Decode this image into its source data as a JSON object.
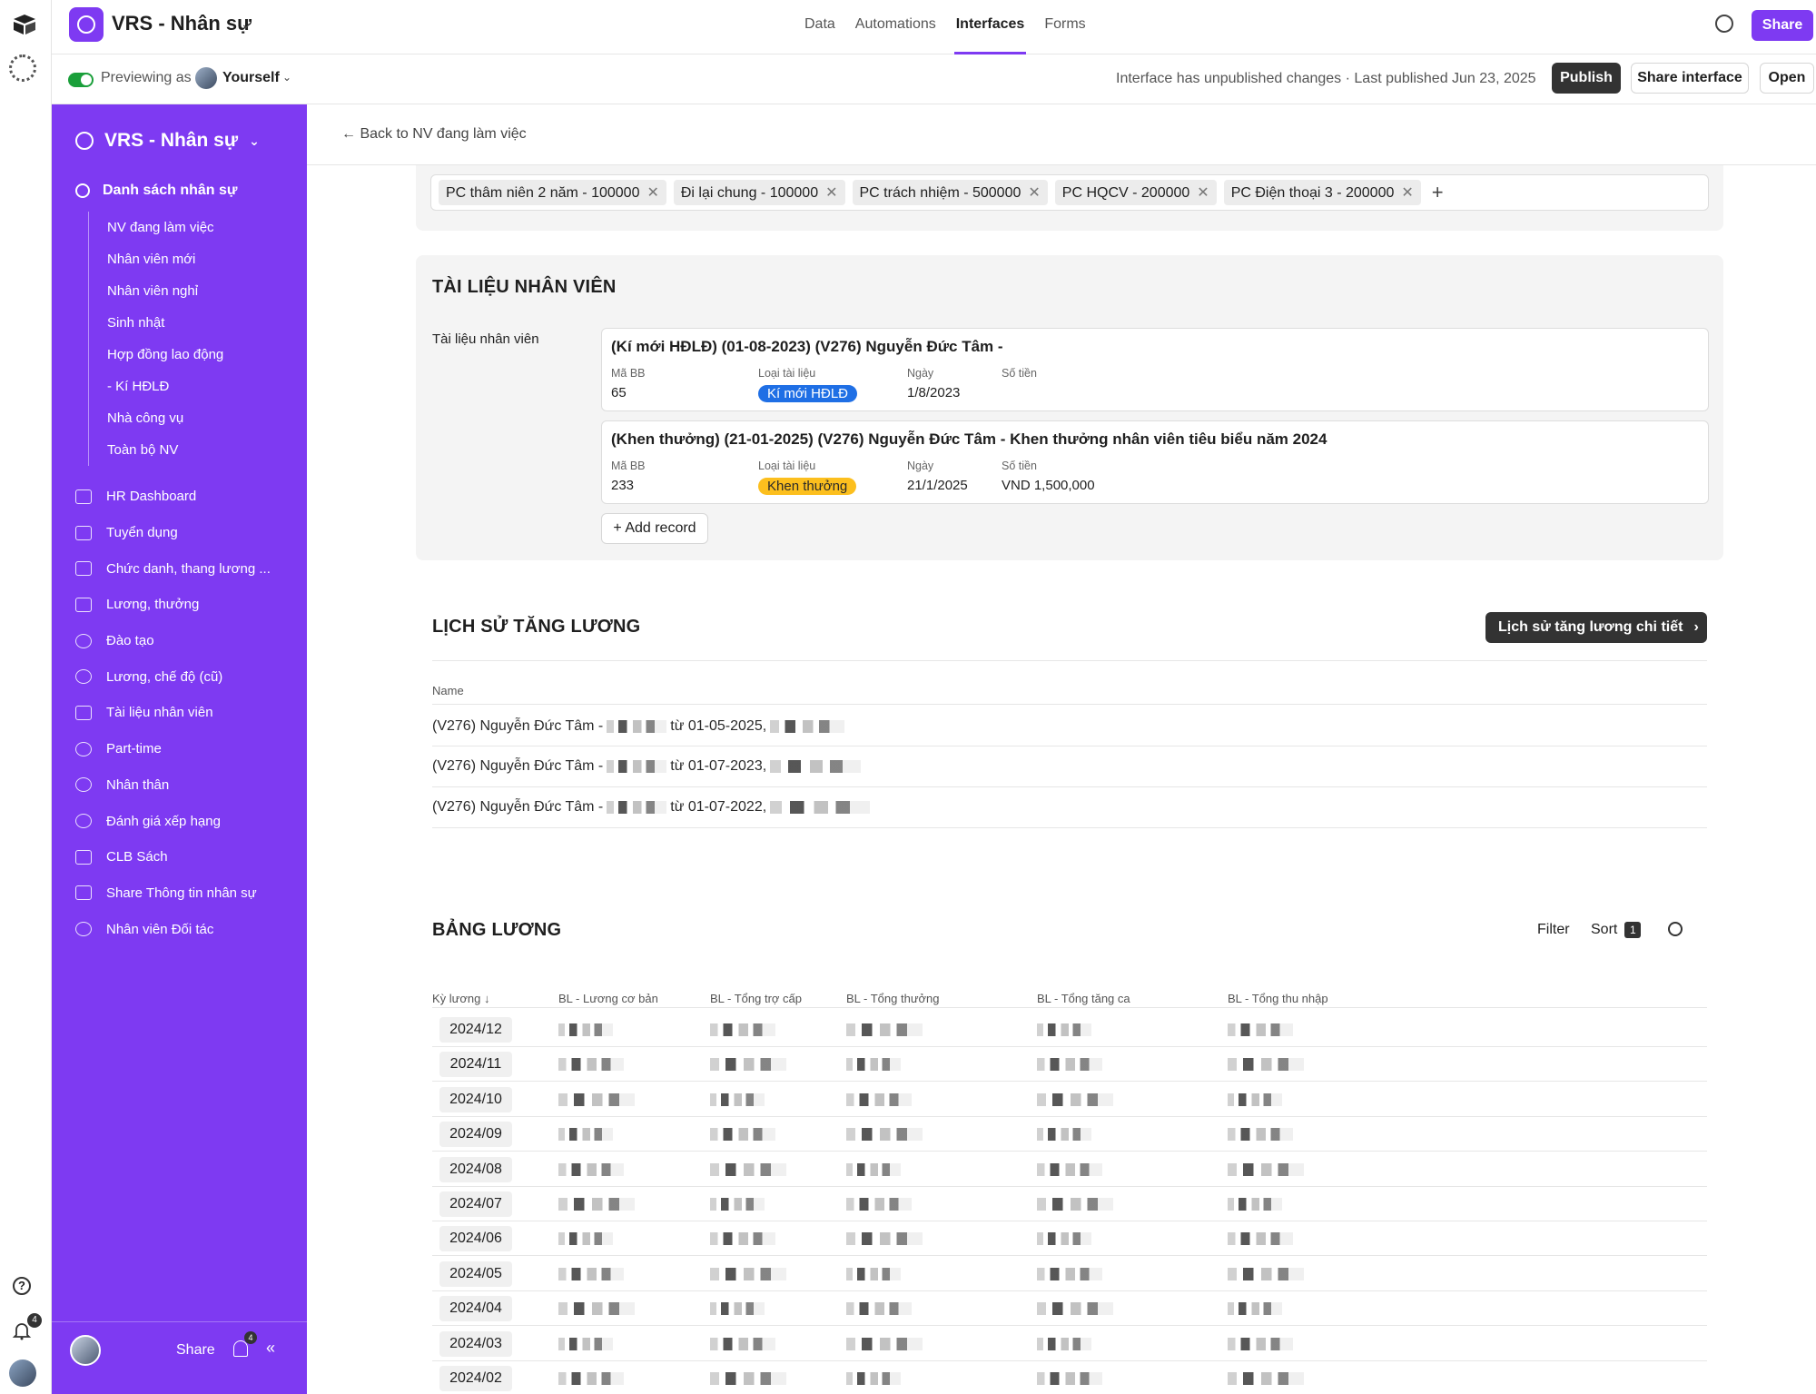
{
  "app": {
    "title": "VRS - Nhân sự"
  },
  "top_tabs": [
    "Data",
    "Automations",
    "Interfaces",
    "Forms"
  ],
  "active_tab": "Interfaces",
  "share_top": "Share",
  "preview": {
    "label": "Previewing as",
    "user": "Yourself"
  },
  "publish_info": "Interface has unpublished changes · Last published Jun 23, 2025",
  "buttons": {
    "publish": "Publish",
    "share_interface": "Share interface",
    "open": "Open"
  },
  "rail": {
    "notif_count": "4"
  },
  "sidebar": {
    "title": "VRS - Nhân sự",
    "section": "Danh sách nhân sự",
    "sub_items": [
      "NV đang làm việc",
      "Nhân viên mới",
      "Nhân viên nghỉ",
      "Sinh nhật",
      "Hợp đồng lao động",
      "- Kí HĐLĐ",
      "Nhà công vụ",
      "Toàn bộ NV"
    ],
    "items": [
      "HR Dashboard",
      "Tuyển dụng",
      "Chức danh, thang lương ...",
      "Lương, thưởng",
      "Đào tạo",
      "Lương, chế độ (cũ)",
      "Tài liệu nhân viên",
      "Part-time",
      "Nhân thân",
      "Đánh giá xếp hạng",
      "CLB Sách",
      "Share Thông tin nhân sự",
      "Nhân viên Đối tác"
    ],
    "footer": {
      "share": "Share",
      "notif_count": "4"
    }
  },
  "main": {
    "back": "Back to NV đang làm việc",
    "chips": [
      "PC thâm niên 2 năm - 100000",
      "Đi lại chung - 100000",
      "PC trách nhiệm - 500000",
      "PC HQCV - 200000",
      "PC Điện thoại 3 - 200000"
    ],
    "docs": {
      "title": "TÀI LIỆU NHÂN VIÊN",
      "label": "Tài liệu nhân viên",
      "field_labels": [
        "Mã BB",
        "Loại tài liệu",
        "Ngày",
        "Số tiền"
      ],
      "records": [
        {
          "title": "(Kí mới HĐLĐ) (01-08-2023) (V276) Nguyễn Đức Tâm -",
          "ma_bb": "65",
          "loai": "Kí mới HĐLĐ",
          "loai_color": "#1f6fe5",
          "ngay": "1/8/2023",
          "so_tien": ""
        },
        {
          "title": "(Khen thưởng) (21-01-2025) (V276) Nguyễn Đức Tâm - Khen thưởng nhân viên tiêu biểu năm 2024",
          "ma_bb": "233",
          "loai": "Khen thưởng",
          "loai_color": "#fcbf1e",
          "ngay": "21/1/2025",
          "so_tien": "VND 1,500,000"
        }
      ],
      "add_record": "+ Add record"
    },
    "history": {
      "title": "LỊCH SỬ TĂNG LƯƠNG",
      "button": "Lịch sử tăng lương chi tiết",
      "column": "Name",
      "rows": [
        {
          "prefix": "(V276) Nguyễn Đức Tâm -",
          "date": "từ 01-05-2025,"
        },
        {
          "prefix": "(V276) Nguyễn Đức Tâm -",
          "date": "từ 01-07-2023,"
        },
        {
          "prefix": "(V276) Nguyễn Đức Tâm -",
          "date": "từ 01-07-2022,"
        }
      ]
    },
    "payroll": {
      "title": "BẢNG LƯƠNG",
      "filter": "Filter",
      "sort": "Sort",
      "sort_count": "1",
      "columns": [
        "Kỳ lương ↓",
        "BL - Lương cơ bản",
        "BL - Tổng trợ cấp",
        "BL - Tổng thưởng",
        "BL - Tổng tăng ca",
        "BL - Tổng thu nhập"
      ],
      "periods": [
        "2024/12",
        "2024/11",
        "2024/10",
        "2024/09",
        "2024/08",
        "2024/07",
        "2024/06",
        "2024/05",
        "2024/04",
        "2024/03",
        "2024/02"
      ]
    }
  }
}
